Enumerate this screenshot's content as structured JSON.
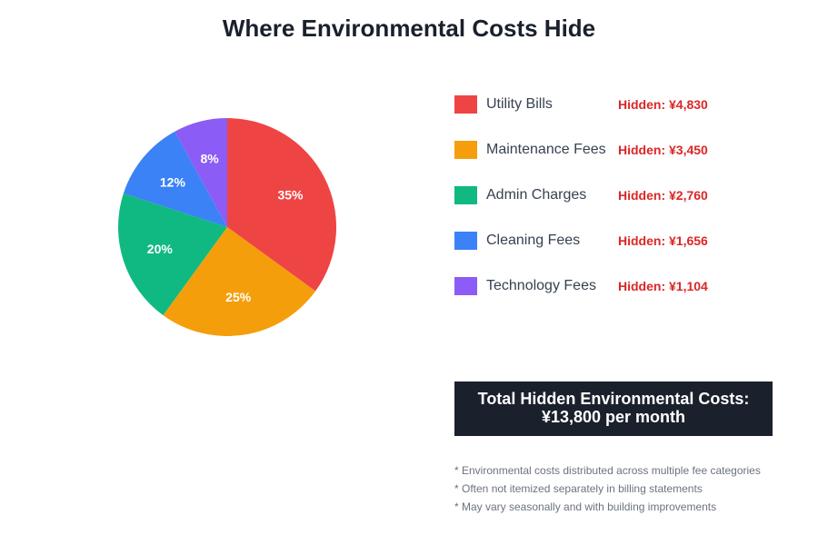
{
  "title": "Where Environmental Costs Hide",
  "chart_data": {
    "type": "pie",
    "title": "Where Environmental Costs Hide",
    "categories": [
      "Utility Bills",
      "Maintenance Fees",
      "Admin Charges",
      "Cleaning Fees",
      "Technology Fees"
    ],
    "values": [
      35,
      25,
      20,
      12,
      8
    ],
    "value_labels": [
      "35%",
      "25%",
      "20%",
      "12%",
      "8%"
    ],
    "colors": [
      "#ef4444",
      "#f59e0b",
      "#10b981",
      "#3b82f6",
      "#8b5cf6"
    ],
    "legend_placement": "right"
  },
  "legend": [
    {
      "label": "Utility Bills",
      "hidden": "Hidden: ¥4,830",
      "color": "#ef4444"
    },
    {
      "label": "Maintenance Fees",
      "hidden": "Hidden: ¥3,450",
      "color": "#f59e0b"
    },
    {
      "label": "Admin Charges",
      "hidden": "Hidden: ¥2,760",
      "color": "#10b981"
    },
    {
      "label": "Cleaning Fees",
      "hidden": "Hidden: ¥1,656",
      "color": "#3b82f6"
    },
    {
      "label": "Technology Fees",
      "hidden": "Hidden: ¥1,104",
      "color": "#8b5cf6"
    }
  ],
  "total": {
    "line1": "Total Hidden Environmental Costs:",
    "line2": "¥13,800 per month"
  },
  "notes": [
    "* Environmental costs distributed across multiple fee categories",
    "* Often not itemized separately in billing statements",
    "* May vary seasonally and with building improvements"
  ]
}
